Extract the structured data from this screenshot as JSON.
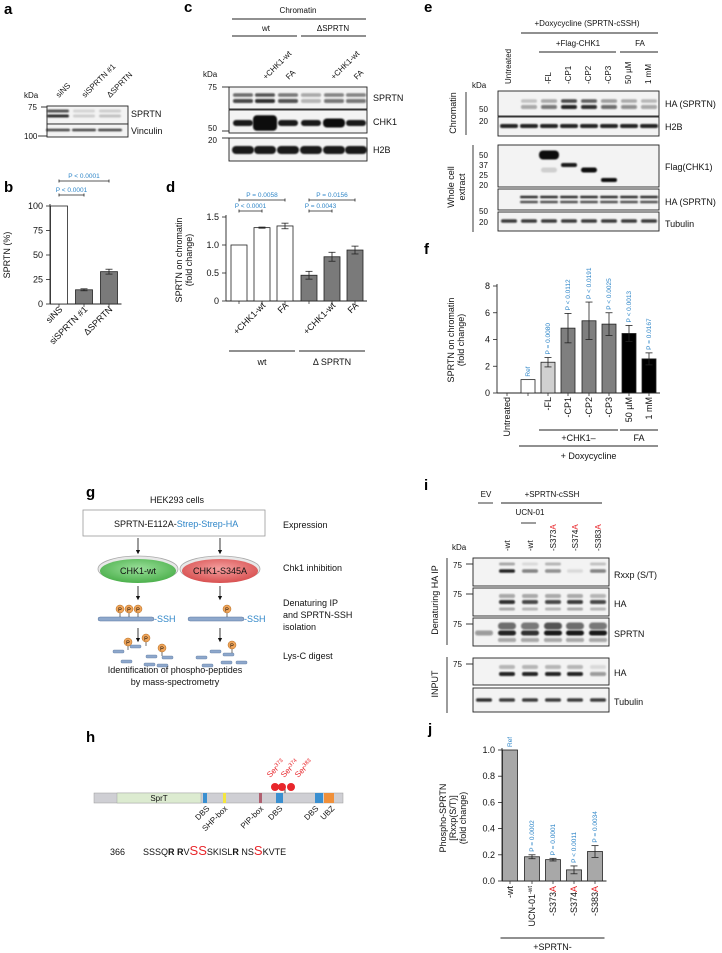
{
  "panel_labels": {
    "a": "a",
    "b": "b",
    "c": "c",
    "d": "d",
    "e": "e",
    "f": "f",
    "g": "g",
    "h": "h",
    "i": "i",
    "j": "j"
  },
  "a": {
    "kda": "kDa",
    "markers": [
      "75",
      "100"
    ],
    "lanes": [
      "siNS",
      "siSPRTN #1",
      "ΔSPRTN"
    ],
    "blots": [
      "SPRTN",
      "Vinculin"
    ]
  },
  "c": {
    "title": "Chromatin",
    "groups": [
      "wt",
      "ΔSPRTN"
    ],
    "lanes": [
      "+CHK1-wt",
      "FA",
      "+CHK1-wt",
      "FA"
    ],
    "kda": "kDa",
    "markers": [
      "75",
      "50",
      "20"
    ],
    "blots": [
      "SPRTN",
      "CHK1",
      "H2B"
    ]
  },
  "e": {
    "title": "+Doxycycline (SPRTN-cSSH)",
    "subgroups": [
      "+Flag-CHK1",
      "FA"
    ],
    "lanes": [
      "Untreated",
      "-FL",
      "-CP1",
      "-CP2",
      "-CP3",
      "50 µM",
      "1 mM"
    ],
    "kda": "kDa",
    "sections": [
      "Chromatin",
      "Whole cell extract"
    ],
    "markers_chromatin": [
      "50",
      "20"
    ],
    "markers_wce": [
      "50",
      "37",
      "25",
      "20",
      "50",
      "20"
    ],
    "blots": [
      "HA (SPRTN)",
      "H2B",
      "Flag(CHK1)",
      "HA (SPRTN)",
      "Tubulin"
    ]
  },
  "g": {
    "header": "HEK293 cells",
    "construct_main": "SPRTN-E112A-",
    "construct_tag": "Strep-Strep-HA",
    "dishes": [
      "CHK1-wt",
      "CHK1-S345A"
    ],
    "tag": "-SSH",
    "phospho": "P",
    "steps": [
      "Expression",
      "Chk1 inhibition",
      "Denaturing IP",
      "and SPRTN-SSH",
      "isolation",
      "Lys-C digest"
    ],
    "caption": [
      "Identification of phospho-peptides",
      "by mass-spectrometry"
    ],
    "colors": {
      "wt_dish": "#5cc05c",
      "mutant_dish": "#e46464",
      "peptide": "#8ea8cc",
      "phospho": "#f0a55a",
      "tag": "#2f86c8"
    }
  },
  "h": {
    "domain_main": "SprT",
    "sites": [
      "Ser373",
      "Ser374",
      "Ser383"
    ],
    "site_prefix": "Ser",
    "site_numbers": [
      "373",
      "374",
      "383"
    ],
    "features": [
      "DBS",
      "SHP-box",
      "PIP-box",
      "DBS",
      "DBS",
      "UBZ"
    ],
    "sequence_start": "366",
    "sequence_parts": [
      {
        "t": "SSSQ",
        "b": false,
        "r": false
      },
      {
        "t": "R",
        "b": true,
        "r": false
      },
      {
        "t": " ",
        "b": false,
        "r": false
      },
      {
        "t": "R",
        "b": true,
        "r": false
      },
      {
        "t": "V",
        "b": false,
        "r": false
      },
      {
        "t": "SS",
        "b": false,
        "r": true
      },
      {
        "t": "SKISL",
        "b": false,
        "r": false
      },
      {
        "t": "R",
        "b": true,
        "r": false
      },
      {
        "t": " NS",
        "b": false,
        "r": false
      },
      {
        "t": "S",
        "b": false,
        "r": true
      },
      {
        "t": "KVTE",
        "b": false,
        "r": false
      }
    ],
    "colors": {
      "sprt": "#dcebd0",
      "dbs": "#3a8fd0",
      "shp": "#f4e640",
      "pip": "#b06070",
      "ubz": "#f0903a",
      "site": "#e8262b"
    }
  },
  "i": {
    "groups": [
      "EV",
      "+SPRTN-cSSH"
    ],
    "treatment": "UCN-01",
    "lanes": [
      "-wt",
      "-wt",
      "-S373",
      "-S374",
      "-S383"
    ],
    "mut_suffix": "A",
    "kda": "kDa",
    "sections": [
      "Denaturing HA IP",
      "INPUT"
    ],
    "markers": [
      "75",
      "75",
      "75",
      "75"
    ],
    "blots": [
      "Rxxp (S/T)",
      "HA",
      "SPRTN",
      "HA",
      "Tubulin"
    ]
  },
  "chart_data": [
    {
      "panel": "b",
      "type": "bar",
      "categories": [
        "siNS",
        "siSPRTN #1",
        "ΔSPRTN"
      ],
      "values": [
        100,
        14.5,
        33
      ],
      "errors": [
        0,
        1,
        2.5
      ],
      "bar_colors": [
        "#ffffff",
        "#7a7a7a",
        "#7a7a7a"
      ],
      "ylabel": [
        "SPRTN (%)"
      ],
      "ylim": [
        0,
        100
      ],
      "yticks": [
        "0",
        "25",
        "50",
        "75",
        "100"
      ],
      "ytick_values": [
        0,
        25,
        50,
        75,
        100
      ],
      "annotations": [
        {
          "text": "P < 0.0001",
          "from": 0,
          "to": 1
        },
        {
          "text": "P < 0.0001",
          "from": 0,
          "to": 2
        }
      ],
      "groups": [],
      "bar_labels": []
    },
    {
      "panel": "d",
      "type": "bar",
      "categories": [
        "",
        "+CHK1-wt",
        "FA",
        "",
        "+CHK1-wt",
        "FA"
      ],
      "values": [
        1.0,
        1.31,
        1.34,
        0.46,
        0.79,
        0.91
      ],
      "errors": [
        0,
        0.01,
        0.05,
        0.07,
        0.08,
        0.07
      ],
      "bar_colors": [
        "#ffffff",
        "#ffffff",
        "#ffffff",
        "#7a7a7a",
        "#7a7a7a",
        "#7a7a7a"
      ],
      "ylabel": [
        "SPRTN on chromatin",
        "(fold change)"
      ],
      "ylim": [
        0,
        1.5
      ],
      "yticks": [
        "0",
        "0.5",
        "1.0",
        "1.5"
      ],
      "ytick_values": [
        0,
        0.5,
        1.0,
        1.5
      ],
      "annotations": [
        {
          "text": "P = 0.0058",
          "from": 0,
          "to": 2
        },
        {
          "text": "P < 0.0001",
          "from": 0,
          "to": 1
        },
        {
          "text": "P = 0.0156",
          "from": 3,
          "to": 5
        },
        {
          "text": "P = 0.0043",
          "from": 3,
          "to": 4
        }
      ],
      "groups": [
        {
          "label": "wt",
          "from": 0,
          "to": 2
        },
        {
          "label": "Δ SPRTN",
          "from": 3,
          "to": 5
        }
      ],
      "bar_labels": []
    },
    {
      "panel": "f",
      "type": "bar",
      "categories": [
        "Untreated",
        "",
        "-FL",
        "-CP1",
        "-CP2",
        "-CP3",
        "50 µM",
        "1 mM"
      ],
      "values": [
        0,
        1.0,
        2.3,
        4.85,
        5.4,
        5.15,
        4.45,
        2.55
      ],
      "errors": [
        0,
        0,
        0.35,
        1.1,
        1.4,
        0.85,
        0.6,
        0.45
      ],
      "bar_colors": [
        "#ffffff",
        "#ffffff",
        "#d0d0d0",
        "#7f7f7f",
        "#7f7f7f",
        "#7f7f7f",
        "#000000",
        "#000000"
      ],
      "ylabel": [
        "SPRTN on chromatin",
        "(fold change)"
      ],
      "ylim": [
        0,
        8
      ],
      "yticks": [
        "0",
        "2",
        "4",
        "6",
        "8"
      ],
      "ytick_values": [
        0,
        2,
        4,
        6,
        8
      ],
      "bar_labels": [
        "",
        "Ref",
        "P = 0.0080",
        "P < 0.0112",
        "P < 0.0191",
        "P < 0.0025",
        "P < 0.0013",
        "P = 0.0167"
      ],
      "annotations": [],
      "groups": [
        {
          "label": "+CHK1–",
          "from": 2,
          "to": 5
        },
        {
          "label": "FA",
          "from": 6,
          "to": 7
        },
        {
          "label": "+ Doxycycline",
          "from": 1,
          "to": 7
        }
      ]
    },
    {
      "panel": "j",
      "type": "bar",
      "categories": [
        "-wt",
        "UCN-01",
        "-S373",
        "-S374",
        "-S383"
      ],
      "category_suffix": [
        "",
        "-wt",
        "A",
        "A",
        "A"
      ],
      "values": [
        1.0,
        0.185,
        0.163,
        0.085,
        0.225
      ],
      "errors": [
        0,
        0.015,
        0.01,
        0.03,
        0.045
      ],
      "bar_colors": [
        "#a8a8a8",
        "#a8a8a8",
        "#a8a8a8",
        "#a8a8a8",
        "#a8a8a8"
      ],
      "ylabel": [
        "Phospho-SPRTN",
        "[Rxxp(S/T)]",
        "(fold change)"
      ],
      "ylim": [
        0,
        1.0
      ],
      "yticks": [
        "0.0",
        "0.2",
        "0.4",
        "0.6",
        "0.8",
        "1.0"
      ],
      "ytick_values": [
        0,
        0.2,
        0.4,
        0.6,
        0.8,
        1.0
      ],
      "bar_labels": [
        "Ref",
        "P = 0.0002",
        "P = 0.0001",
        "P < 0.0011",
        "P = 0.0034"
      ],
      "annotations": [],
      "groups": [
        {
          "label": "+SPRTN-",
          "from": 0,
          "to": 4
        }
      ]
    }
  ]
}
